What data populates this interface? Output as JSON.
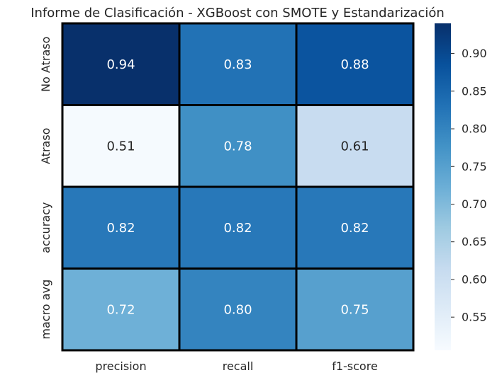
{
  "chart_data": {
    "type": "heatmap",
    "title": "Informe de Clasificación - XGBoost con SMOTE y Estandarización",
    "rows": [
      "No Atraso",
      "Atraso",
      "accuracy",
      "macro avg"
    ],
    "columns": [
      "precision",
      "recall",
      "f1-score"
    ],
    "values": [
      [
        0.94,
        0.83,
        0.88
      ],
      [
        0.51,
        0.78,
        0.61
      ],
      [
        0.82,
        0.82,
        0.82
      ],
      [
        0.72,
        0.8,
        0.75
      ]
    ],
    "annotations": [
      [
        "0.94",
        "0.83",
        "0.88"
      ],
      [
        "0.51",
        "0.78",
        "0.61"
      ],
      [
        "0.82",
        "0.82",
        "0.82"
      ],
      [
        "0.72",
        "0.80",
        "0.75"
      ]
    ],
    "colormap": "Blues",
    "vmin": 0.506,
    "vmax": 0.94,
    "colorbar_ticks": [
      "0.55",
      "0.60",
      "0.65",
      "0.70",
      "0.75",
      "0.80",
      "0.85",
      "0.90"
    ],
    "colorbar_tick_values": [
      0.55,
      0.6,
      0.65,
      0.7,
      0.75,
      0.8,
      0.85,
      0.9
    ],
    "cell_border_color": "#000000",
    "text_light": "#ffffff",
    "text_dark": "#262626"
  }
}
